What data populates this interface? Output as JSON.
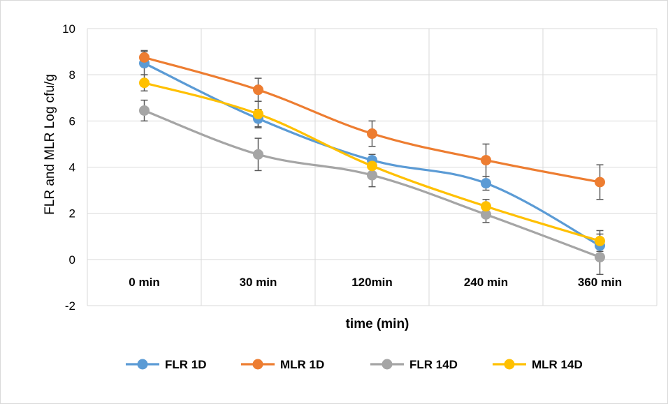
{
  "chart_data": {
    "type": "line",
    "title": "",
    "xlabel": "time (min)",
    "ylabel": "FLR and MLR Log cfu/g",
    "categories": [
      "0 min",
      "30 min",
      "120min",
      "240 min",
      "360 min"
    ],
    "ylim": [
      -2,
      10
    ],
    "yticks": [
      "-2",
      "0",
      "2",
      "4",
      "6",
      "8",
      "10"
    ],
    "grid": true,
    "legend_position": "bottom",
    "series": [
      {
        "name": "FLR 1D",
        "color": "#5B9BD5",
        "values": [
          8.5,
          6.1,
          4.3,
          3.3,
          0.6
        ],
        "errors": [
          0.5,
          0.4,
          0.25,
          0.3,
          0.5
        ]
      },
      {
        "name": "MLR 1D",
        "color": "#ED7D31",
        "values": [
          8.75,
          7.35,
          5.45,
          4.3,
          3.35
        ],
        "errors": [
          0.3,
          0.5,
          0.55,
          0.7,
          0.75
        ]
      },
      {
        "name": "FLR 14D",
        "color": "#A5A5A5",
        "values": [
          6.45,
          4.55,
          3.65,
          1.95,
          0.1
        ],
        "errors": [
          0.45,
          0.7,
          0.5,
          0.35,
          0.75
        ]
      },
      {
        "name": "MLR 14D",
        "color": "#FFC000",
        "values": [
          7.65,
          6.3,
          4.05,
          2.3,
          0.8
        ],
        "errors": [
          0.35,
          0.55,
          0.3,
          0.3,
          0.45
        ]
      }
    ]
  }
}
